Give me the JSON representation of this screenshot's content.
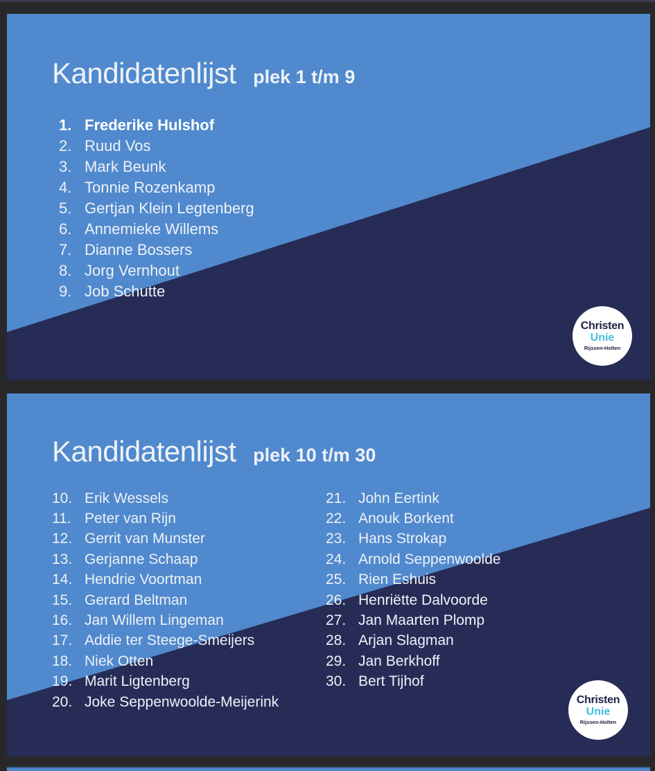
{
  "colors": {
    "page_bg": "#28282b",
    "card_blue": "#5089cd",
    "card_navy": "#272c56",
    "text_light": "#eef2f8",
    "text_bold": "#ffffff",
    "logo_bg": "#ffffff",
    "logo_navy": "#202346",
    "logo_cyan": "#46bde2"
  },
  "slide1": {
    "title": "Kandidatenlijst",
    "subtitle": "plek 1 t/m 9",
    "candidates": [
      {
        "num": "1.",
        "name": "Frederike Hulshof",
        "bold": true
      },
      {
        "num": "2.",
        "name": "Ruud Vos"
      },
      {
        "num": "3.",
        "name": "Mark Beunk"
      },
      {
        "num": "4.",
        "name": "Tonnie Rozenkamp"
      },
      {
        "num": "5.",
        "name": "Gertjan Klein Legtenberg"
      },
      {
        "num": "6.",
        "name": "Annemieke Willems"
      },
      {
        "num": "7.",
        "name": "Dianne Bossers"
      },
      {
        "num": "8.",
        "name": "Jorg Vernhout"
      },
      {
        "num": "9.",
        "name": "Job Schutte"
      }
    ]
  },
  "slide2": {
    "title": "Kandidatenlijst",
    "subtitle": "plek 10 t/m 30",
    "candidates_left": [
      {
        "num": "10.",
        "name": "Erik Wessels"
      },
      {
        "num": "11.",
        "name": "Peter van Rijn"
      },
      {
        "num": "12.",
        "name": "Gerrit van Munster"
      },
      {
        "num": "13.",
        "name": "Gerjanne Schaap"
      },
      {
        "num": "14.",
        "name": "Hendrie Voortman"
      },
      {
        "num": "15.",
        "name": "Gerard Beltman"
      },
      {
        "num": "16.",
        "name": "Jan Willem Lingeman"
      },
      {
        "num": "17.",
        "name": "Addie ter Steege-Smeijers"
      },
      {
        "num": "18.",
        "name": "Niek Otten"
      },
      {
        "num": "19.",
        "name": "Marit Ligtenberg"
      },
      {
        "num": "20.",
        "name": "Joke Seppenwoolde-Meijerink"
      }
    ],
    "candidates_right": [
      {
        "num": "21.",
        "name": "John Eertink"
      },
      {
        "num": "22.",
        "name": "Anouk Borkent"
      },
      {
        "num": "23.",
        "name": "Hans Strokap"
      },
      {
        "num": "24.",
        "name": "Arnold Seppenwoolde"
      },
      {
        "num": "25.",
        "name": "Rien Eshuis"
      },
      {
        "num": "26.",
        "name": "Henriëtte Dalvoorde"
      },
      {
        "num": "27.",
        "name": "Jan Maarten Plomp"
      },
      {
        "num": "28.",
        "name": "Arjan Slagman"
      },
      {
        "num": "29.",
        "name": "Jan Berkhoff"
      },
      {
        "num": "30.",
        "name": "Bert Tijhof"
      }
    ]
  },
  "logo": {
    "line1": "Christen",
    "line2": "Unie",
    "line3": "Rijssen-Holten"
  }
}
